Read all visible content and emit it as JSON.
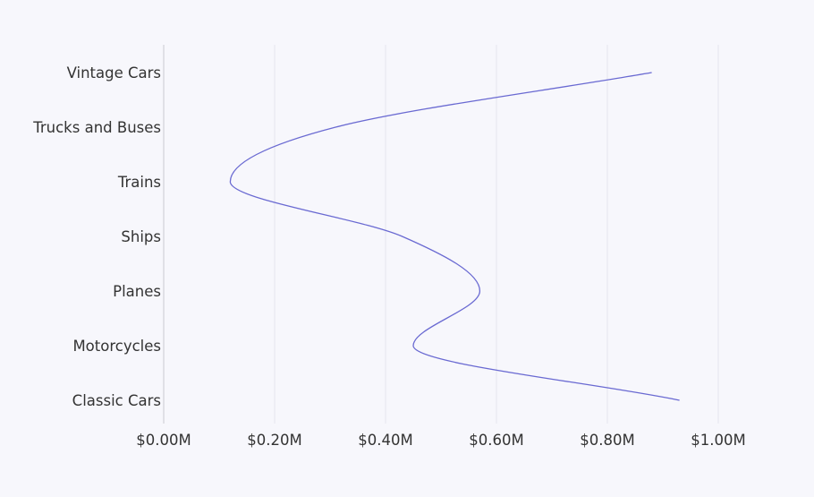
{
  "chart_data": {
    "type": "line",
    "orientation": "horizontal",
    "categories": [
      "Vintage Cars",
      "Trucks and Buses",
      "Trains",
      "Ships",
      "Planes",
      "Motorcycles",
      "Classic Cars"
    ],
    "values": [
      0.88,
      0.31,
      0.12,
      0.43,
      0.57,
      0.45,
      0.93
    ],
    "x_ticks": [
      "$0.00M",
      "$0.20M",
      "$0.40M",
      "$0.60M",
      "$0.80M",
      "$1.00M"
    ],
    "xlim": [
      0,
      1.0
    ],
    "title": "",
    "xlabel": "",
    "ylabel": "",
    "grid": "vertical",
    "legend": "none",
    "colors": {
      "line": "#6a6ad2",
      "grid": "#e6e6ee",
      "axis": "#c8c8d0",
      "background": "#f7f7fc",
      "text": "#333333"
    }
  }
}
